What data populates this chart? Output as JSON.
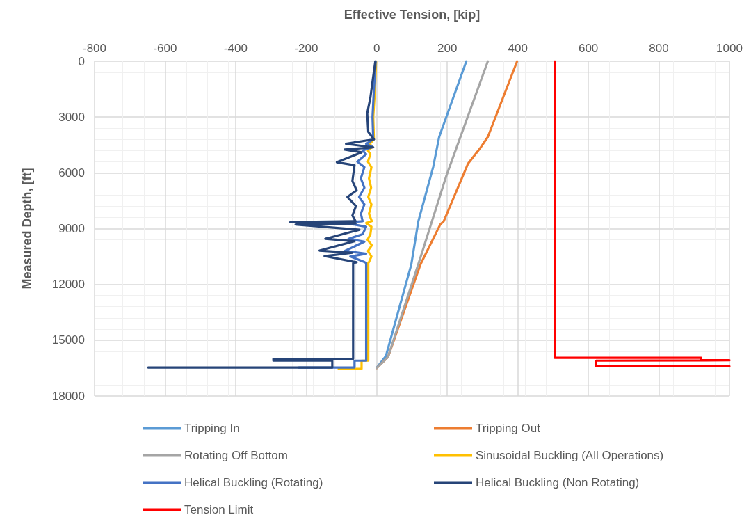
{
  "chart_data": {
    "type": "line",
    "xlabel": "Effective Tension, [kip]",
    "ylabel": "Measured Depth, [ft]",
    "xlim": [
      -800,
      1000
    ],
    "xticks": [
      -800,
      -600,
      -400,
      -200,
      0,
      200,
      400,
      600,
      800,
      1000
    ],
    "ylim": [
      18000,
      0
    ],
    "yticks": [
      0,
      3000,
      6000,
      9000,
      12000,
      15000,
      18000
    ],
    "grid": true,
    "legend": "bottom",
    "series": [
      {
        "name": "Tripping In",
        "color": "#5b9bd5",
        "x": [
          254,
          177,
          160,
          118,
          98,
          26,
          0
        ],
        "values": [
          0,
          4070,
          5690,
          8600,
          10930,
          15850,
          16480
        ]
      },
      {
        "name": "Tripping Out",
        "color": "#ed7d31",
        "x": [
          398,
          315,
          295,
          259,
          190,
          180,
          124,
          32,
          0
        ],
        "values": [
          0,
          4070,
          4630,
          5500,
          8600,
          8780,
          10930,
          15900,
          16500
        ]
      },
      {
        "name": "Rotating Off Bottom",
        "color": "#a5a5a5",
        "x": [
          315,
          197,
          124,
          32,
          0
        ],
        "values": [
          0,
          6180,
          10550,
          15900,
          16500
        ]
      },
      {
        "name": "Sinusoidal Buckling (All Operations)",
        "color": "#ffc000",
        "x": [
          -2,
          -5,
          -10,
          -8,
          -20,
          -12,
          -25,
          -18,
          -25,
          -15,
          -22,
          -16,
          -24,
          -15,
          -22,
          -14,
          -30,
          -15,
          -18,
          -26,
          -14,
          -25,
          -15,
          -22,
          -24,
          -24,
          -24,
          -43,
          -43,
          -108
        ],
        "values": [
          0,
          1500,
          3000,
          4200,
          4450,
          4600,
          4800,
          5000,
          5400,
          5700,
          6300,
          6800,
          7300,
          7700,
          8200,
          8600,
          8700,
          8900,
          9300,
          9600,
          9900,
          10200,
          10500,
          10800,
          10850,
          16000,
          16100,
          16100,
          16540,
          16540
        ]
      },
      {
        "name": "Helical Buckling (Rotating)",
        "color": "#4472c4",
        "x": [
          -3,
          -8,
          -12,
          -10,
          -30,
          -12,
          -40,
          -30,
          -55,
          -35,
          -45,
          -35,
          -50,
          -35,
          -45,
          -40,
          -93,
          -30,
          -40,
          -80,
          -35,
          -90,
          -30,
          -75,
          -35,
          -30,
          -30,
          -30,
          -63,
          -63,
          -221
        ],
        "values": [
          0,
          1500,
          3000,
          4200,
          4450,
          4600,
          4800,
          5000,
          5400,
          5700,
          6300,
          6800,
          7300,
          7700,
          8200,
          8600,
          8680,
          8900,
          9300,
          9550,
          9700,
          10200,
          10350,
          10500,
          10800,
          10850,
          16000,
          16100,
          16100,
          16470,
          16470
        ]
      },
      {
        "name": "Helical Buckling (Non Rotating)",
        "color": "#264478",
        "x": [
          -4,
          -10,
          -18,
          -27,
          -24,
          -8,
          -87,
          -10,
          -91,
          -43,
          -113,
          -63,
          -69,
          -57,
          -83,
          -59,
          -69,
          -60,
          -245,
          -60,
          -230,
          -49,
          -146,
          -63,
          -162,
          -69,
          -148,
          -57,
          -67,
          -67,
          -293,
          -293,
          -126,
          -126,
          -648
        ],
        "values": [
          0,
          820,
          1950,
          2800,
          3800,
          4200,
          4440,
          4630,
          4750,
          4900,
          5430,
          5590,
          6440,
          6940,
          7300,
          7790,
          8300,
          8600,
          8650,
          8720,
          8780,
          9060,
          9550,
          9680,
          10180,
          10300,
          10480,
          10810,
          10850,
          16000,
          16000,
          16100,
          16100,
          16470,
          16470
        ]
      },
      {
        "name": "Tension Limit",
        "color": "#ff0000",
        "x": [
          505,
          505,
          920,
          920,
          1000,
          1000,
          622,
          622,
          1000
        ],
        "values": [
          0,
          15950,
          15950,
          16080,
          16080,
          16100,
          16100,
          16400,
          16400
        ]
      }
    ]
  }
}
